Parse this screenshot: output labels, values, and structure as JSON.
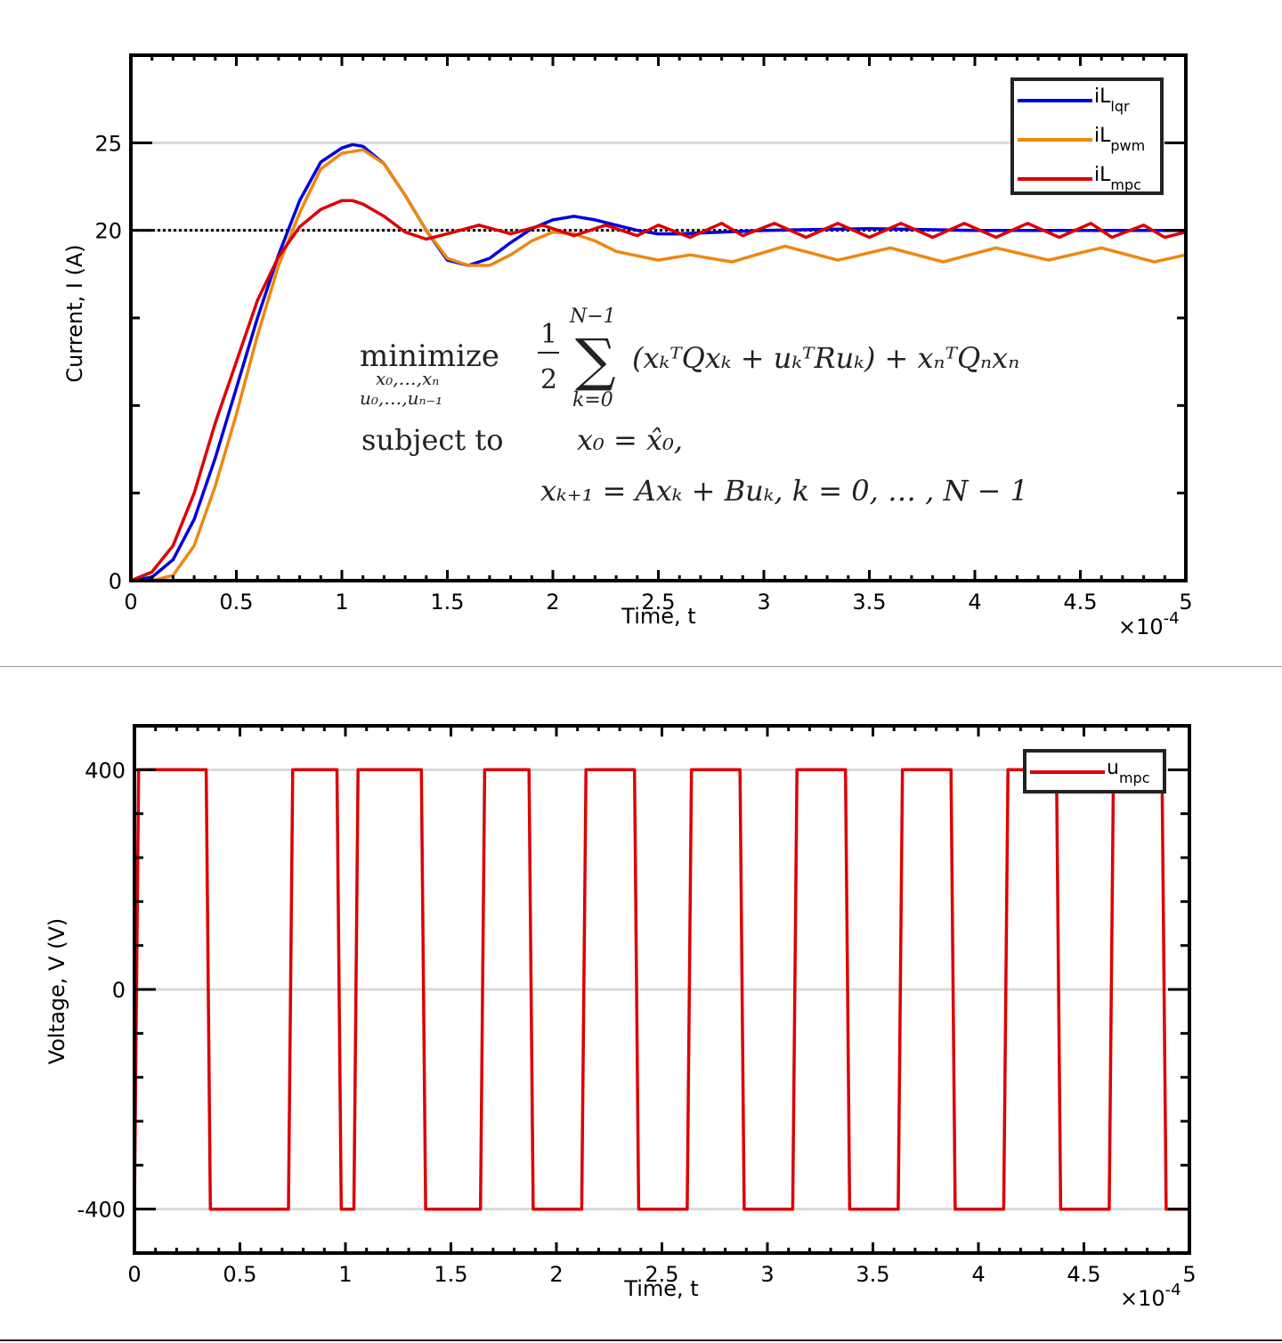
{
  "chart_data": [
    {
      "type": "line",
      "xlabel": "Time, t",
      "ylabel": "Current, I (A)",
      "x_multiplier": "×10",
      "x_multiplier_exp": "-4",
      "xlim": [
        0,
        5
      ],
      "ylim": [
        0,
        30
      ],
      "x_ticks": [
        "0",
        "0.5",
        "1",
        "1.5",
        "2",
        "2.5",
        "3",
        "3.5",
        "4",
        "4.5",
        "5"
      ],
      "y_ticks": [
        {
          "value": 0,
          "label": "0"
        },
        {
          "value": 20,
          "label": "20"
        },
        {
          "value": 25,
          "label": "25"
        }
      ],
      "reference_line": {
        "y": 20,
        "style": "dotted"
      },
      "legend": "top-right",
      "series": [
        {
          "name": "iL",
          "name_sub": "lqr",
          "color": "#0000dd",
          "x": [
            0,
            0.1,
            0.2,
            0.3,
            0.4,
            0.5,
            0.6,
            0.7,
            0.8,
            0.9,
            1.0,
            1.05,
            1.1,
            1.2,
            1.3,
            1.4,
            1.5,
            1.6,
            1.7,
            1.8,
            1.9,
            2.0,
            2.1,
            2.2,
            2.3,
            2.4,
            2.5,
            2.6,
            2.8,
            3.0,
            3.5,
            4.0,
            4.5,
            5.0
          ],
          "y": [
            0,
            0.2,
            1.2,
            3.5,
            7.0,
            11.0,
            15.0,
            18.6,
            21.7,
            23.9,
            24.7,
            24.9,
            24.8,
            23.8,
            22.0,
            20.0,
            18.3,
            18.0,
            18.4,
            19.3,
            20.1,
            20.6,
            20.8,
            20.6,
            20.3,
            20.0,
            19.8,
            19.8,
            19.9,
            20.0,
            20.1,
            20.0,
            20.0,
            20.0
          ]
        },
        {
          "name": "iL",
          "name_sub": "pwm",
          "color": "#ee8811",
          "x": [
            0,
            0.1,
            0.2,
            0.3,
            0.4,
            0.5,
            0.6,
            0.7,
            0.8,
            0.9,
            1.0,
            1.1,
            1.2,
            1.3,
            1.4,
            1.5,
            1.6,
            1.7,
            1.8,
            1.9,
            2.0,
            2.1,
            2.2,
            2.3,
            2.5,
            2.65,
            2.85,
            3.1,
            3.35,
            3.6,
            3.85,
            4.1,
            4.35,
            4.6,
            4.85,
            5.0
          ],
          "y": [
            0,
            0,
            0.3,
            2.0,
            5.4,
            9.5,
            14.0,
            18.0,
            21.0,
            23.5,
            24.4,
            24.6,
            23.8,
            22.0,
            20.0,
            18.4,
            18.0,
            18.0,
            18.6,
            19.4,
            19.9,
            19.8,
            19.4,
            18.8,
            18.3,
            18.6,
            18.2,
            19.1,
            18.3,
            19.0,
            18.2,
            19.0,
            18.3,
            19.0,
            18.2,
            18.6
          ]
        },
        {
          "name": "iL",
          "name_sub": "mpc",
          "color": "#dd0000",
          "x": [
            0,
            0.1,
            0.2,
            0.3,
            0.4,
            0.5,
            0.6,
            0.7,
            0.8,
            0.9,
            1.0,
            1.05,
            1.1,
            1.2,
            1.3,
            1.4,
            1.5,
            1.65,
            1.8,
            1.95,
            2.1,
            2.25,
            2.4,
            2.5,
            2.65,
            2.8,
            2.9,
            3.05,
            3.2,
            3.35,
            3.5,
            3.65,
            3.8,
            3.95,
            4.1,
            4.25,
            4.4,
            4.55,
            4.65,
            4.8,
            4.9,
            5.0
          ],
          "y": [
            0,
            0.5,
            2.0,
            5.0,
            9.0,
            12.5,
            16.0,
            18.5,
            20.2,
            21.2,
            21.7,
            21.7,
            21.5,
            20.8,
            19.9,
            19.5,
            19.8,
            20.3,
            19.8,
            20.3,
            19.7,
            20.3,
            19.7,
            20.3,
            19.6,
            20.4,
            19.7,
            20.4,
            19.6,
            20.4,
            19.6,
            20.4,
            19.6,
            20.4,
            19.6,
            20.4,
            19.6,
            20.4,
            19.6,
            20.3,
            19.6,
            19.9
          ]
        }
      ],
      "annotation": {
        "row1_op": "minimize",
        "row1_sub1": "x₀,…,xₙ",
        "row1_sub2": "u₀,…,uₙ₋₁",
        "frac_num": "1",
        "frac_den": "2",
        "sum_top": "N−1",
        "sum_bottom": "k=0",
        "sum_sign": "∑",
        "objective": "(xₖᵀQxₖ + uₖᵀRuₖ) + xₙᵀQₙxₙ",
        "row2_op": "subject to",
        "constraint1": "x₀ = x̂₀,",
        "constraint2": "xₖ₊₁ = Axₖ + Buₖ,    k = 0, … , N − 1"
      }
    },
    {
      "type": "line",
      "xlabel": "Time, t",
      "ylabel": "Voltage, V (V)",
      "x_multiplier": "×10",
      "x_multiplier_exp": "-4",
      "xlim": [
        0,
        5
      ],
      "ylim": [
        -480,
        480
      ],
      "x_ticks": [
        "0",
        "0.5",
        "1",
        "1.5",
        "2",
        "2.5",
        "3",
        "3.5",
        "4",
        "4.5",
        "5"
      ],
      "y_ticks": [
        {
          "value": 400,
          "label": "400"
        },
        {
          "value": 0,
          "label": "0"
        },
        {
          "value": -400,
          "label": "-400"
        }
      ],
      "legend": "top-right",
      "series": [
        {
          "name": "u",
          "name_sub": "mpc",
          "color": "#dd0000",
          "x": [
            0,
            0.02,
            0.34,
            0.36,
            0.73,
            0.75,
            0.96,
            0.98,
            1.04,
            1.06,
            1.36,
            1.38,
            1.64,
            1.66,
            1.87,
            1.89,
            2.12,
            2.14,
            2.37,
            2.39,
            2.62,
            2.64,
            2.87,
            2.89,
            3.12,
            3.14,
            3.37,
            3.39,
            3.62,
            3.64,
            3.87,
            3.89,
            4.12,
            4.14,
            4.37,
            4.39,
            4.62,
            4.64,
            4.87,
            4.89,
            5.0
          ],
          "y": [
            -400,
            400,
            400,
            -400,
            -400,
            400,
            400,
            -400,
            -400,
            400,
            400,
            -400,
            -400,
            400,
            400,
            -400,
            -400,
            400,
            400,
            -400,
            -400,
            400,
            400,
            -400,
            -400,
            400,
            400,
            -400,
            -400,
            400,
            400,
            -400,
            -400,
            400,
            400,
            -400,
            -400,
            400,
            400,
            -400,
            -400
          ]
        }
      ]
    }
  ]
}
